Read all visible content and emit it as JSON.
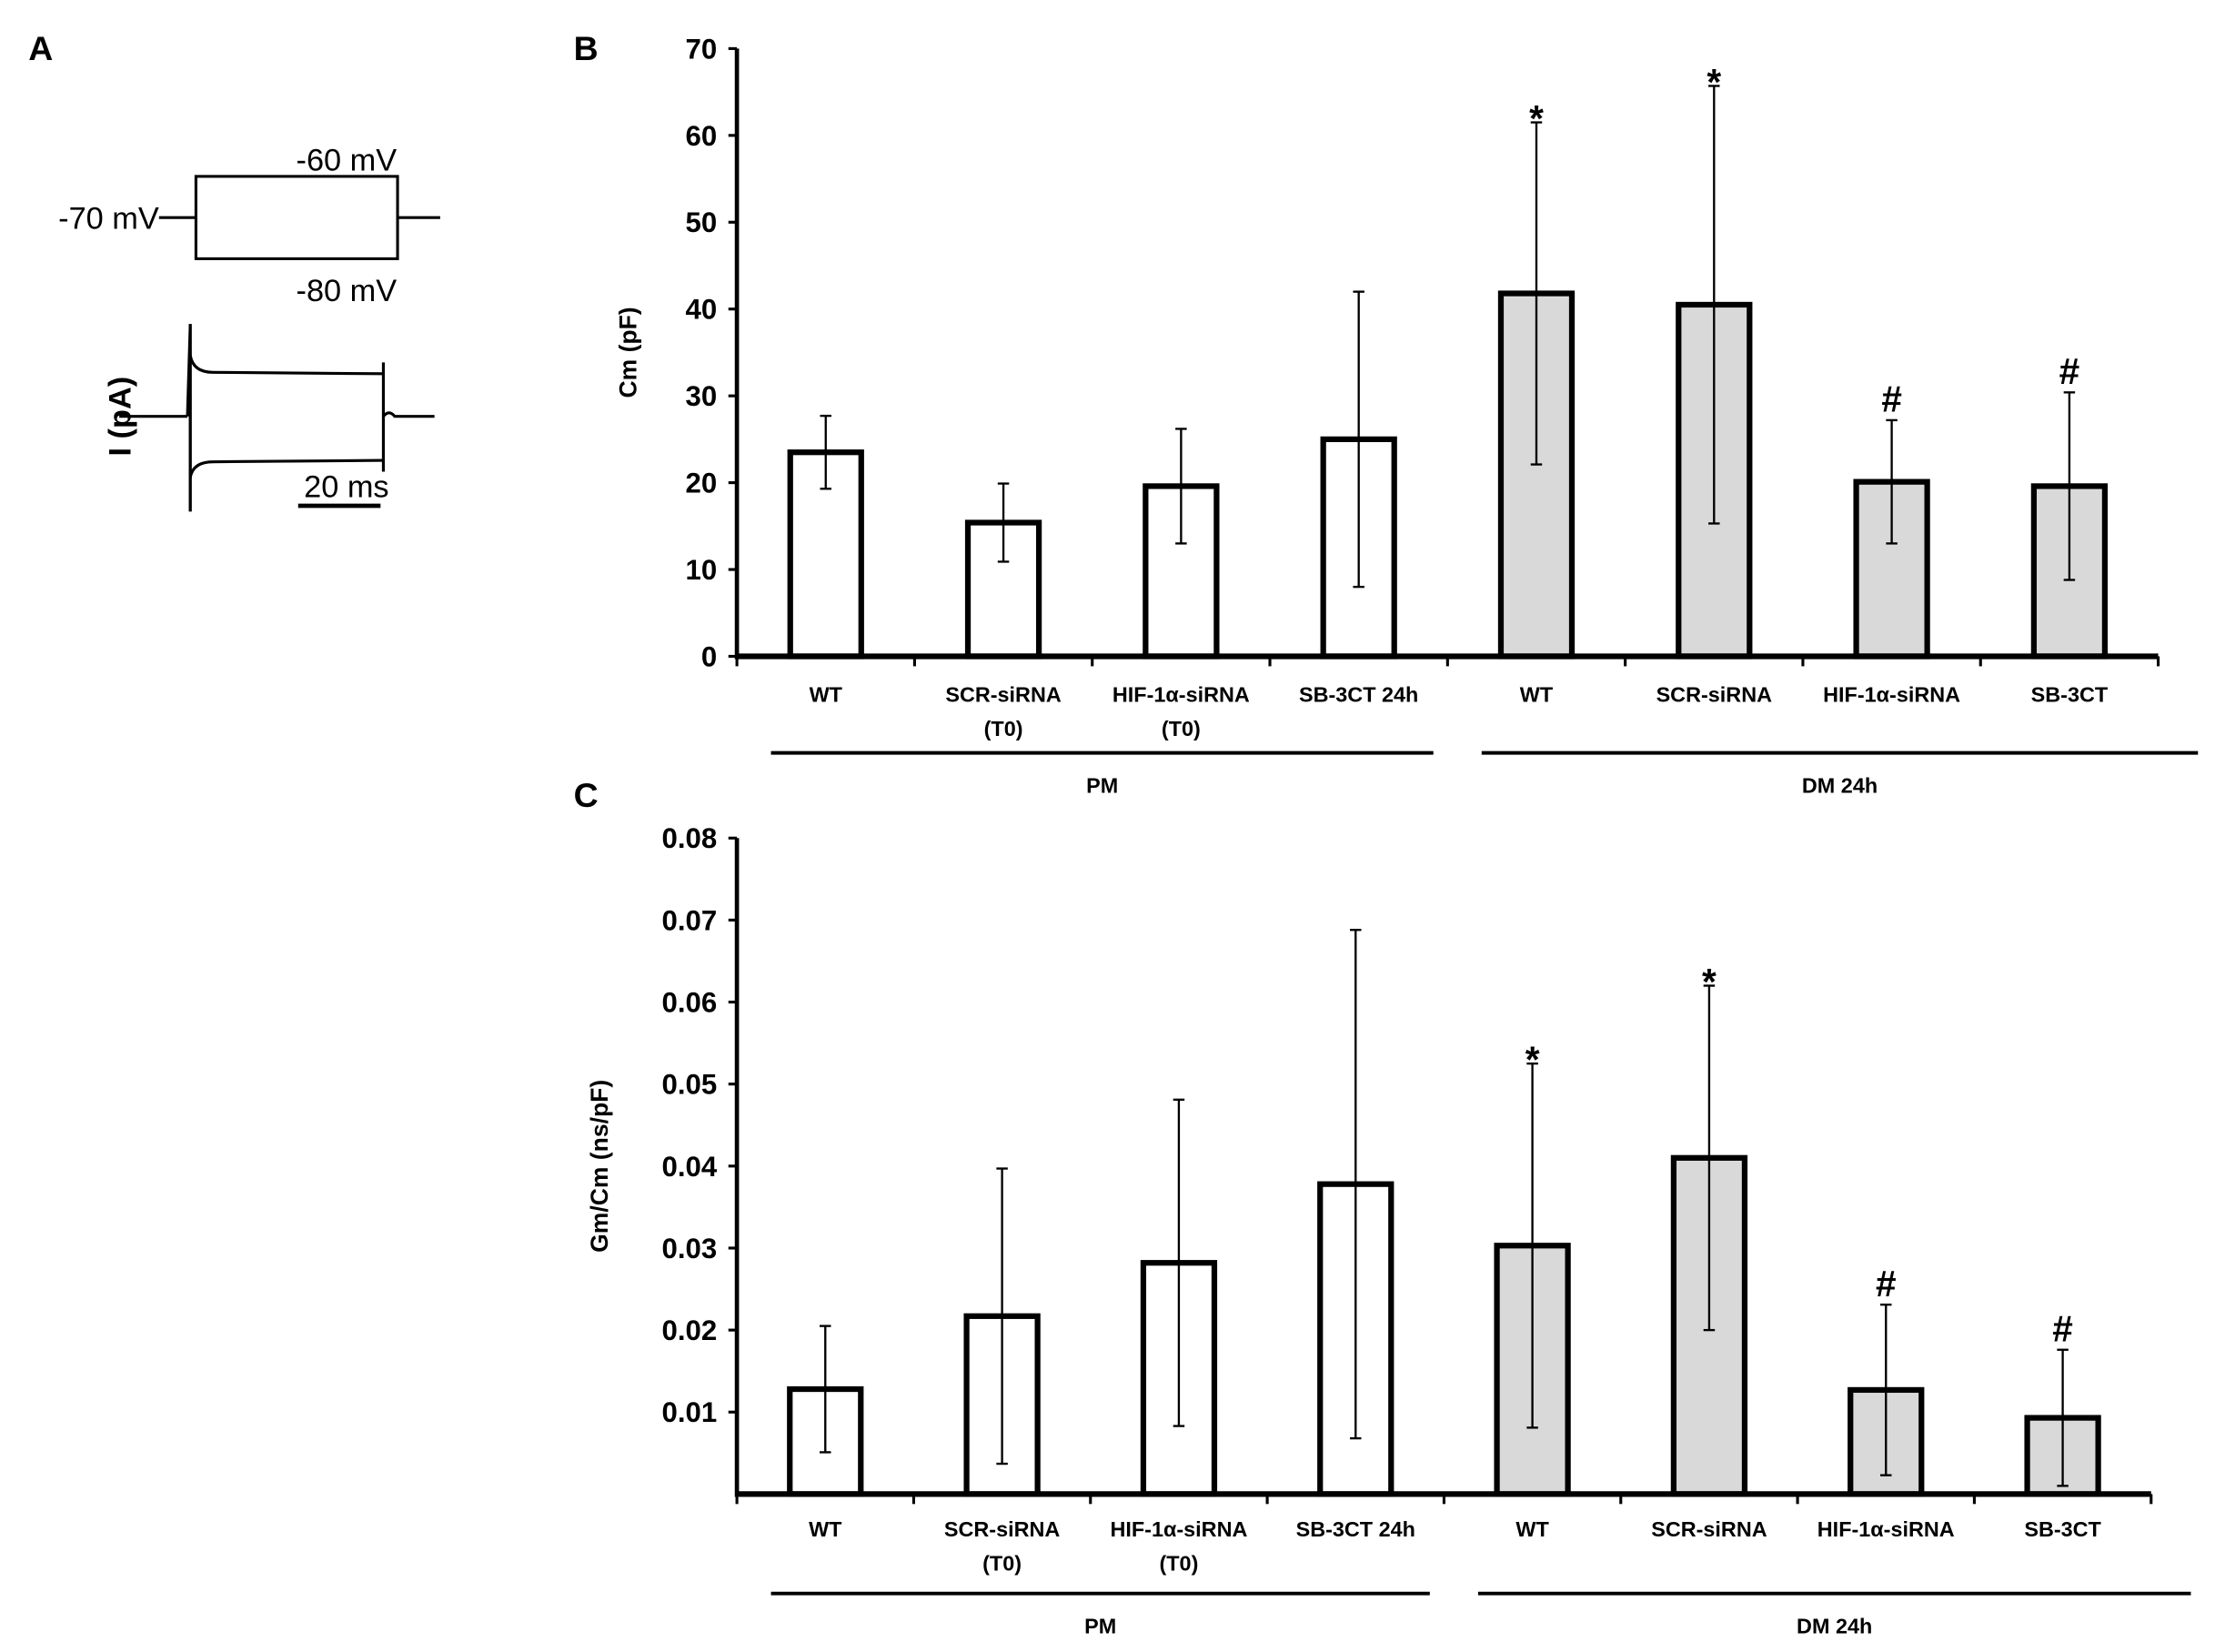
{
  "panels": {
    "a": "A",
    "b": "B",
    "c": "C"
  },
  "protocol": {
    "holding": "-70 mV",
    "step_up": "-60 mV",
    "step_down": "-80 mV",
    "current_label": "I (pA)",
    "scale_bar": "20 ms"
  },
  "colors": {
    "pm_fill": "#ffffff",
    "dm_fill": "#d9d9d9",
    "stroke": "#000000"
  },
  "chart_data": [
    {
      "type": "bar",
      "panel": "B",
      "ylabel": "Cm (pF)",
      "ylim": [
        0,
        70
      ],
      "yticks": [
        0,
        10,
        20,
        30,
        40,
        50,
        60,
        70
      ],
      "ytick_labels": [
        "0",
        "10",
        "20",
        "30",
        "40",
        "50",
        "60",
        "70"
      ],
      "categories": [
        [
          "WT"
        ],
        [
          "SCR-siRNA",
          "(T0)"
        ],
        [
          "HIF-1α-siRNA",
          "(T0)"
        ],
        [
          "SB-3CT 24h"
        ],
        [
          "WT"
        ],
        [
          "SCR-siRNA"
        ],
        [
          "HIF-1α-siRNA"
        ],
        [
          "SB-3CT"
        ]
      ],
      "groups": [
        {
          "label": "PM",
          "members": [
            0,
            1,
            2,
            3
          ]
        },
        {
          "label": "DM 24h",
          "members": [
            4,
            5,
            6,
            7
          ]
        }
      ],
      "values": [
        23.5,
        15.4,
        19.6,
        25.0,
        41.8,
        40.5,
        20.1,
        19.6
      ],
      "errors": [
        4.2,
        4.5,
        6.6,
        17.0,
        19.7,
        25.2,
        7.1,
        10.8
      ],
      "annotations": [
        "",
        "",
        "",
        "",
        "*",
        "*",
        "#",
        "#"
      ],
      "grid": false
    },
    {
      "type": "bar",
      "panel": "C",
      "ylabel": "Gm/Cm (ns/pF)",
      "ylim": [
        0,
        0.08
      ],
      "yticks": [
        0.01,
        0.02,
        0.03,
        0.04,
        0.05,
        0.06,
        0.07,
        0.08
      ],
      "ytick_labels": [
        "0.01",
        "0.02",
        "0.03",
        "0.04",
        "0.05",
        "0.06",
        "0.07",
        "0.08"
      ],
      "categories": [
        [
          "WT"
        ],
        [
          "SCR-siRNA",
          "(T0)"
        ],
        [
          "HIF-1α-siRNA",
          "(T0)"
        ],
        [
          "SB-3CT 24h"
        ],
        [
          "WT"
        ],
        [
          "SCR-siRNA"
        ],
        [
          "HIF-1α-siRNA"
        ],
        [
          "SB-3CT"
        ]
      ],
      "groups": [
        {
          "label": "PM",
          "members": [
            0,
            1,
            2,
            3
          ]
        },
        {
          "label": "DM 24h",
          "members": [
            4,
            5,
            6,
            7
          ]
        }
      ],
      "values": [
        0.0128,
        0.0217,
        0.0282,
        0.0378,
        0.0303,
        0.041,
        0.0127,
        0.0093
      ],
      "errors": [
        0.0077,
        0.018,
        0.0199,
        0.031,
        0.0222,
        0.021,
        0.0104,
        0.0083
      ],
      "annotations": [
        "",
        "",
        "",
        "",
        "*",
        "*",
        "#",
        "#"
      ],
      "grid": false
    }
  ]
}
